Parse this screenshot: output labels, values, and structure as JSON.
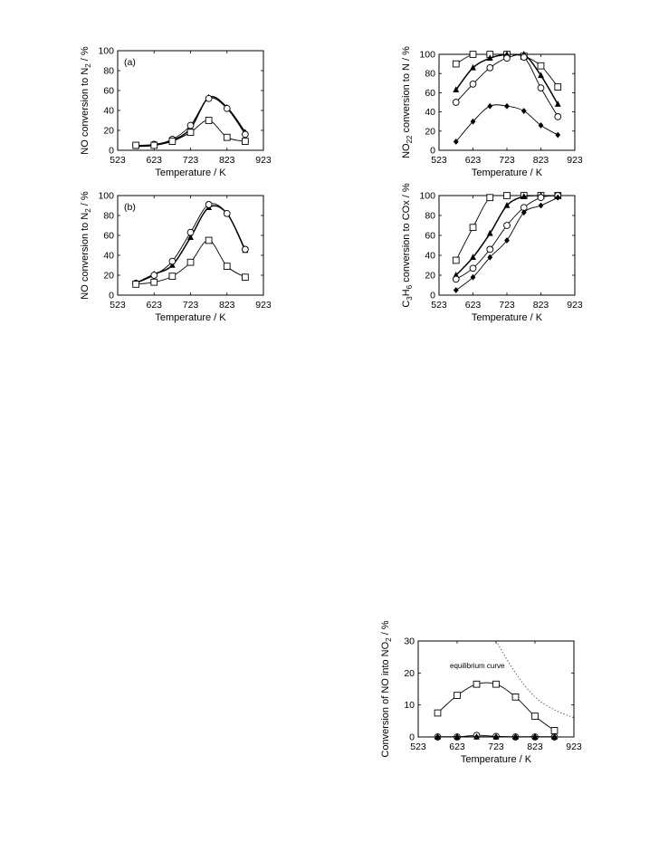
{
  "chart_data": [
    {
      "id": "a",
      "type": "line",
      "panel_label": "(a)",
      "xlabel": "Temperature / K",
      "ylabel": "NO conversion to N",
      "ylabel_sub": "2",
      "ylabel_unit": " / %",
      "xlim": [
        523,
        923
      ],
      "ylim": [
        0,
        100
      ],
      "xticks": [
        523,
        623,
        723,
        823,
        923
      ],
      "yticks": [
        0,
        20,
        40,
        60,
        80,
        100
      ],
      "grid": false,
      "series": [
        {
          "marker": "triangle",
          "x": [
            573,
            623,
            673,
            723,
            773,
            823,
            873
          ],
          "values": [
            4,
            5,
            10,
            22,
            53,
            43,
            18
          ]
        },
        {
          "marker": "circle",
          "x": [
            573,
            623,
            673,
            723,
            773,
            823,
            873
          ],
          "values": [
            5,
            6,
            11,
            25,
            52,
            42,
            16
          ]
        },
        {
          "marker": "square",
          "x": [
            573,
            623,
            673,
            723,
            773,
            823,
            873
          ],
          "values": [
            5,
            5,
            9,
            18,
            30,
            13,
            9
          ]
        }
      ]
    },
    {
      "id": "b",
      "type": "line",
      "panel_label": "(b)",
      "xlabel": "Temperature / K",
      "ylabel": "NO conversion to N",
      "ylabel_sub": "2",
      "ylabel_unit": " / %",
      "xlim": [
        523,
        923
      ],
      "ylim": [
        0,
        100
      ],
      "xticks": [
        523,
        623,
        723,
        823,
        923
      ],
      "yticks": [
        0,
        20,
        40,
        60,
        80,
        100
      ],
      "grid": false,
      "series": [
        {
          "marker": "triangle",
          "x": [
            573,
            623,
            673,
            723,
            773,
            823,
            873
          ],
          "values": [
            12,
            21,
            30,
            58,
            88,
            82,
            45
          ]
        },
        {
          "marker": "circle",
          "x": [
            573,
            623,
            673,
            723,
            773,
            823,
            873
          ],
          "values": [
            12,
            20,
            34,
            63,
            91,
            82,
            46
          ]
        },
        {
          "marker": "square",
          "x": [
            573,
            623,
            673,
            723,
            773,
            823,
            873
          ],
          "values": [
            11,
            13,
            19,
            33,
            55,
            29,
            18
          ]
        }
      ]
    },
    {
      "id": "c",
      "type": "line",
      "panel_label": "",
      "xlabel": "Temperature / K",
      "ylabel": "NO",
      "ylabel_sub": "2",
      "ylabel_rest": " conversion to N",
      "ylabel_sub2": "2",
      "ylabel_unit": " / %",
      "xlim": [
        523,
        923
      ],
      "ylim": [
        0,
        100
      ],
      "xticks": [
        523,
        623,
        723,
        823,
        923
      ],
      "yticks": [
        0,
        20,
        40,
        60,
        80,
        100
      ],
      "grid": false,
      "series": [
        {
          "marker": "square",
          "x": [
            573,
            623,
            673,
            723,
            773,
            823,
            873
          ],
          "values": [
            90,
            100,
            100,
            100,
            98,
            88,
            66
          ]
        },
        {
          "marker": "triangle",
          "x": [
            573,
            623,
            673,
            723,
            773,
            823,
            873
          ],
          "values": [
            63,
            86,
            96,
            100,
            100,
            78,
            48
          ]
        },
        {
          "marker": "circle",
          "x": [
            573,
            623,
            673,
            723,
            773,
            823,
            873
          ],
          "values": [
            50,
            69,
            86,
            96,
            97,
            65,
            35
          ]
        },
        {
          "marker": "diamond",
          "x": [
            573,
            623,
            673,
            723,
            773,
            823,
            873
          ],
          "values": [
            9,
            30,
            46,
            46,
            41,
            26,
            16
          ]
        }
      ]
    },
    {
      "id": "d",
      "type": "line",
      "panel_label": "",
      "xlabel": "Temperature / K",
      "ylabel": "C",
      "ylabel_sub": "3",
      "ylabel_mid": "H",
      "ylabel_sub2": "6",
      "ylabel_rest": " conversion to COx / %",
      "xlim": [
        523,
        923
      ],
      "ylim": [
        0,
        100
      ],
      "xticks": [
        523,
        623,
        723,
        823,
        923
      ],
      "yticks": [
        0,
        20,
        40,
        60,
        80,
        100
      ],
      "grid": false,
      "series": [
        {
          "marker": "square",
          "x": [
            573,
            623,
            673,
            723,
            773,
            823,
            873
          ],
          "values": [
            35,
            68,
            98,
            100,
            100,
            100,
            100
          ]
        },
        {
          "marker": "triangle",
          "x": [
            573,
            623,
            673,
            723,
            773,
            823,
            873
          ],
          "values": [
            20,
            38,
            62,
            90,
            99,
            100,
            100
          ]
        },
        {
          "marker": "circle",
          "x": [
            573,
            623,
            673,
            723,
            773,
            823,
            873
          ],
          "values": [
            16,
            27,
            46,
            70,
            88,
            98,
            100
          ]
        },
        {
          "marker": "diamond",
          "x": [
            573,
            623,
            673,
            723,
            773,
            823,
            873
          ],
          "values": [
            5,
            18,
            38,
            55,
            83,
            90,
            98
          ]
        }
      ]
    },
    {
      "id": "e",
      "type": "line",
      "panel_label": "",
      "annotation": "equilibrium curve",
      "xlabel": "Temperature / K",
      "ylabel": "Conversion of NO into NO",
      "ylabel_sub": "2",
      "ylabel_unit": " / %",
      "xlim": [
        523,
        923
      ],
      "ylim": [
        0,
        30
      ],
      "xticks": [
        523,
        623,
        723,
        823,
        923
      ],
      "yticks": [
        0,
        10,
        20,
        30
      ],
      "grid": false,
      "series": [
        {
          "marker": "square",
          "x": [
            573,
            623,
            673,
            723,
            773,
            823,
            873
          ],
          "values": [
            7.5,
            13,
            16.5,
            16.5,
            12.5,
            6.5,
            2
          ]
        },
        {
          "marker": "circle",
          "x": [
            573,
            623,
            673,
            723,
            773,
            823,
            873
          ],
          "values": [
            0,
            0,
            0.5,
            0.2,
            0,
            0,
            0
          ]
        },
        {
          "marker": "triangle",
          "x": [
            573,
            623,
            673,
            723,
            773,
            823,
            873
          ],
          "values": [
            0,
            0,
            0,
            0,
            0,
            0,
            0
          ]
        },
        {
          "marker": "diamond",
          "x": [
            573,
            623,
            673,
            723,
            773,
            823,
            873
          ],
          "values": [
            0,
            0,
            0,
            0,
            0,
            0,
            0
          ]
        },
        {
          "line": "dotted",
          "x": [
            723,
            773,
            823,
            873,
            923
          ],
          "values": [
            30,
            20,
            12.5,
            8.5,
            6
          ]
        }
      ]
    }
  ]
}
